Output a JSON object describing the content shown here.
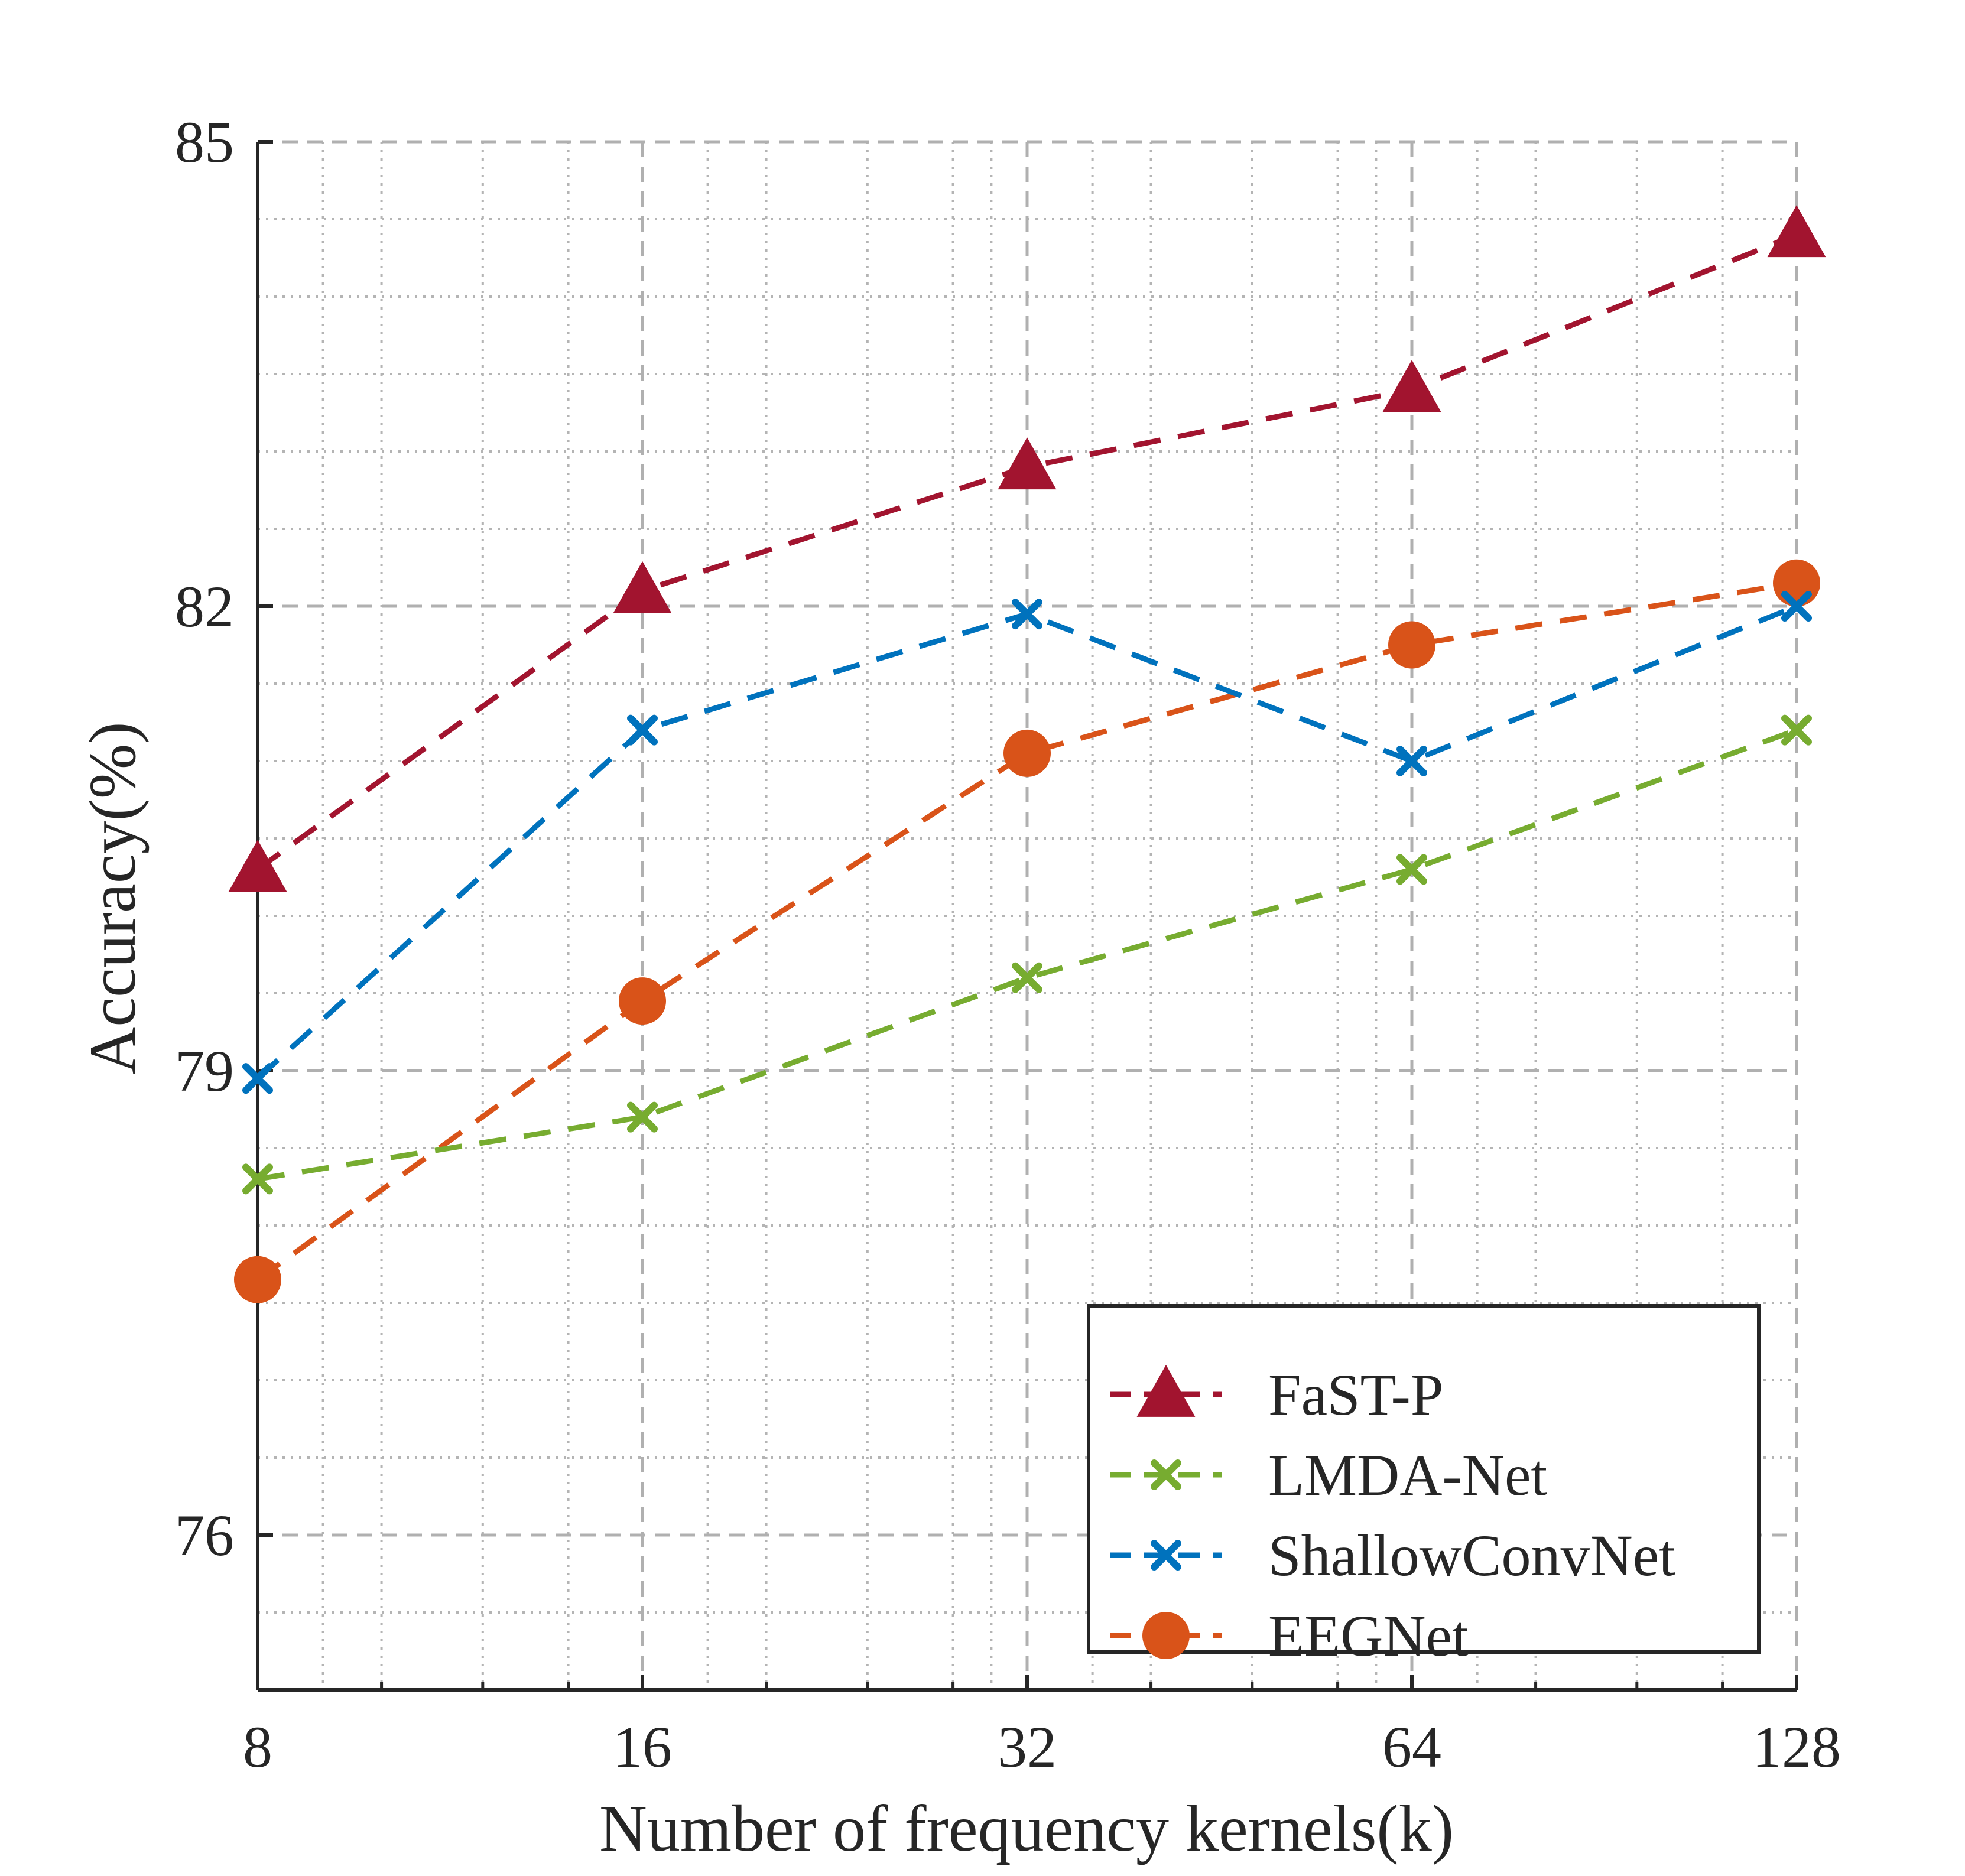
{
  "chart_data": {
    "type": "line",
    "x": [
      8,
      16,
      32,
      64,
      128
    ],
    "xscale": "log2",
    "xlim": [
      8,
      128
    ],
    "xticks": [
      "8",
      "16",
      "32",
      "64",
      "128"
    ],
    "xlabel": "Number of frequency kernels(k)",
    "ylabel": "Accuracy(%)",
    "ylim": [
      75,
      85
    ],
    "yticks": [
      "76",
      "79",
      "82",
      "85"
    ],
    "grid": true,
    "legend_position": "bottom-right",
    "series": [
      {
        "name": "FaST-P",
        "color": "#A2142F",
        "marker": "triangle",
        "values": [
          80.3,
          82.1,
          82.9,
          83.4,
          84.4
        ]
      },
      {
        "name": "LMDA-Net",
        "color": "#77AC30",
        "marker": "x",
        "values": [
          78.3,
          78.7,
          79.6,
          80.3,
          81.2
        ]
      },
      {
        "name": "ShallowConvNet",
        "color": "#0072BD",
        "marker": "x",
        "values": [
          78.95,
          81.2,
          81.95,
          81.0,
          82.0
        ]
      },
      {
        "name": "EEGNet",
        "color": "#D95319",
        "marker": "circle",
        "values": [
          77.65,
          79.45,
          81.05,
          81.75,
          82.15
        ]
      }
    ]
  }
}
